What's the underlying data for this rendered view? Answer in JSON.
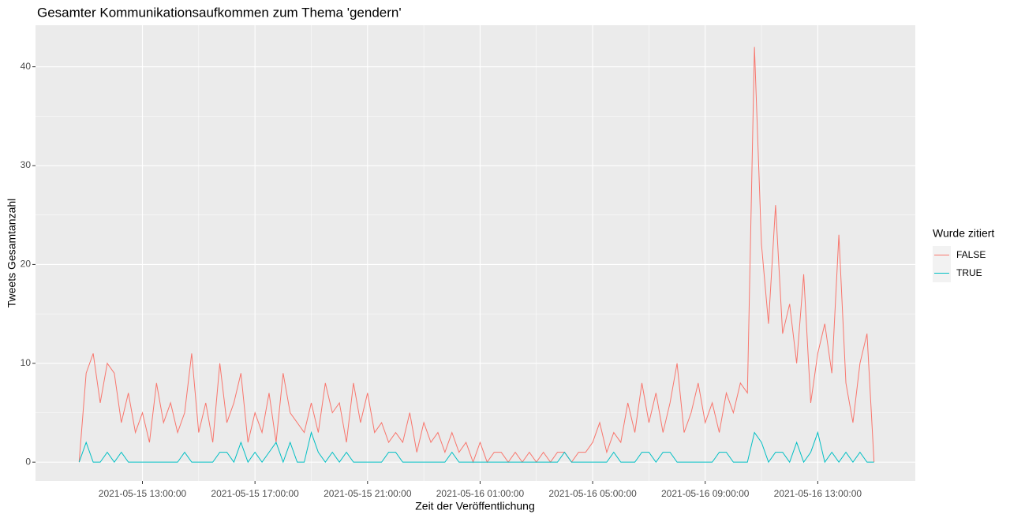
{
  "chart_data": {
    "type": "line",
    "title": "Gesamter Kommunikationsaufkommen zum Thema 'gendern'",
    "x_label": "Zeit der Veröffentlichung",
    "y_label": "Tweets Gesamtanzahl",
    "legend_title": "Wurde zitiert",
    "legend_position": "right",
    "grid": true,
    "x": [
      "2021-05-15 10:45:00",
      "2021-05-15 11:00:00",
      "2021-05-15 11:15:00",
      "2021-05-15 11:30:00",
      "2021-05-15 11:45:00",
      "2021-05-15 12:00:00",
      "2021-05-15 12:15:00",
      "2021-05-15 12:30:00",
      "2021-05-15 12:45:00",
      "2021-05-15 13:00:00",
      "2021-05-15 13:15:00",
      "2021-05-15 13:30:00",
      "2021-05-15 13:45:00",
      "2021-05-15 14:00:00",
      "2021-05-15 14:15:00",
      "2021-05-15 14:30:00",
      "2021-05-15 14:45:00",
      "2021-05-15 15:00:00",
      "2021-05-15 15:15:00",
      "2021-05-15 15:30:00",
      "2021-05-15 15:45:00",
      "2021-05-15 16:00:00",
      "2021-05-15 16:15:00",
      "2021-05-15 16:30:00",
      "2021-05-15 16:45:00",
      "2021-05-15 17:00:00",
      "2021-05-15 17:15:00",
      "2021-05-15 17:30:00",
      "2021-05-15 17:45:00",
      "2021-05-15 18:00:00",
      "2021-05-15 18:15:00",
      "2021-05-15 18:30:00",
      "2021-05-15 18:45:00",
      "2021-05-15 19:00:00",
      "2021-05-15 19:15:00",
      "2021-05-15 19:30:00",
      "2021-05-15 19:45:00",
      "2021-05-15 20:00:00",
      "2021-05-15 20:15:00",
      "2021-05-15 20:30:00",
      "2021-05-15 20:45:00",
      "2021-05-15 21:00:00",
      "2021-05-15 21:15:00",
      "2021-05-15 21:30:00",
      "2021-05-15 21:45:00",
      "2021-05-15 22:00:00",
      "2021-05-15 22:15:00",
      "2021-05-15 22:30:00",
      "2021-05-15 22:45:00",
      "2021-05-15 23:00:00",
      "2021-05-15 23:15:00",
      "2021-05-15 23:30:00",
      "2021-05-15 23:45:00",
      "2021-05-16 00:00:00",
      "2021-05-16 00:15:00",
      "2021-05-16 00:30:00",
      "2021-05-16 00:45:00",
      "2021-05-16 01:00:00",
      "2021-05-16 01:15:00",
      "2021-05-16 01:30:00",
      "2021-05-16 01:45:00",
      "2021-05-16 02:00:00",
      "2021-05-16 02:15:00",
      "2021-05-16 02:30:00",
      "2021-05-16 02:45:00",
      "2021-05-16 03:00:00",
      "2021-05-16 03:15:00",
      "2021-05-16 03:30:00",
      "2021-05-16 03:45:00",
      "2021-05-16 04:00:00",
      "2021-05-16 04:15:00",
      "2021-05-16 04:30:00",
      "2021-05-16 04:45:00",
      "2021-05-16 05:00:00",
      "2021-05-16 05:15:00",
      "2021-05-16 05:30:00",
      "2021-05-16 05:45:00",
      "2021-05-16 06:00:00",
      "2021-05-16 06:15:00",
      "2021-05-16 06:30:00",
      "2021-05-16 06:45:00",
      "2021-05-16 07:00:00",
      "2021-05-16 07:15:00",
      "2021-05-16 07:30:00",
      "2021-05-16 07:45:00",
      "2021-05-16 08:00:00",
      "2021-05-16 08:15:00",
      "2021-05-16 08:30:00",
      "2021-05-16 08:45:00",
      "2021-05-16 09:00:00",
      "2021-05-16 09:15:00",
      "2021-05-16 09:30:00",
      "2021-05-16 09:45:00",
      "2021-05-16 10:00:00",
      "2021-05-16 10:15:00",
      "2021-05-16 10:30:00",
      "2021-05-16 10:45:00",
      "2021-05-16 11:00:00",
      "2021-05-16 11:15:00",
      "2021-05-16 11:30:00",
      "2021-05-16 11:45:00",
      "2021-05-16 12:00:00",
      "2021-05-16 12:15:00",
      "2021-05-16 12:30:00",
      "2021-05-16 12:45:00",
      "2021-05-16 13:00:00",
      "2021-05-16 13:15:00",
      "2021-05-16 13:30:00",
      "2021-05-16 13:45:00",
      "2021-05-16 14:00:00",
      "2021-05-16 14:15:00",
      "2021-05-16 14:30:00",
      "2021-05-16 14:45:00",
      "2021-05-16 15:00:00"
    ],
    "series": [
      {
        "name": "FALSE",
        "color": "#F8766D",
        "values": [
          0,
          9,
          11,
          6,
          10,
          9,
          4,
          7,
          3,
          5,
          2,
          8,
          4,
          6,
          3,
          5,
          11,
          3,
          6,
          2,
          10,
          4,
          6,
          9,
          2,
          5,
          3,
          7,
          2,
          9,
          5,
          4,
          3,
          6,
          3,
          8,
          5,
          6,
          2,
          8,
          4,
          7,
          3,
          4,
          2,
          3,
          2,
          5,
          1,
          4,
          2,
          3,
          1,
          3,
          1,
          2,
          0,
          2,
          0,
          1,
          1,
          0,
          1,
          0,
          1,
          0,
          1,
          0,
          1,
          1,
          0,
          1,
          1,
          2,
          4,
          1,
          3,
          2,
          6,
          3,
          8,
          4,
          7,
          3,
          6,
          10,
          3,
          5,
          8,
          4,
          6,
          3,
          7,
          5,
          8,
          7,
          42,
          22,
          14,
          26,
          13,
          16,
          10,
          19,
          6,
          11,
          14,
          9,
          23,
          8,
          4,
          10,
          13,
          0
        ]
      },
      {
        "name": "TRUE",
        "color": "#00BFC4",
        "values": [
          0,
          2,
          0,
          0,
          1,
          0,
          1,
          0,
          0,
          0,
          0,
          0,
          0,
          0,
          0,
          1,
          0,
          0,
          0,
          0,
          1,
          1,
          0,
          2,
          0,
          1,
          0,
          1,
          2,
          0,
          2,
          0,
          0,
          3,
          1,
          0,
          1,
          0,
          1,
          0,
          0,
          0,
          0,
          0,
          1,
          1,
          0,
          0,
          0,
          0,
          0,
          0,
          0,
          1,
          0,
          0,
          0,
          0,
          0,
          0,
          0,
          0,
          0,
          0,
          0,
          0,
          0,
          0,
          0,
          1,
          0,
          0,
          0,
          0,
          0,
          0,
          1,
          0,
          0,
          0,
          1,
          1,
          0,
          1,
          1,
          0,
          0,
          0,
          0,
          0,
          0,
          1,
          1,
          0,
          0,
          0,
          3,
          2,
          0,
          1,
          1,
          0,
          2,
          0,
          1,
          3,
          0,
          1,
          0,
          1,
          0,
          1,
          0,
          0
        ]
      }
    ],
    "xlim": [
      "2021-05-15 09:12:00",
      "2021-05-16 16:28:00"
    ],
    "xticks": [
      "2021-05-15 13:00:00",
      "2021-05-15 17:00:00",
      "2021-05-15 21:00:00",
      "2021-05-16 01:00:00",
      "2021-05-16 05:00:00",
      "2021-05-16 09:00:00",
      "2021-05-16 13:00:00"
    ],
    "ylim": [
      -1.9,
      44.2
    ],
    "yticks": [
      0,
      10,
      20,
      30,
      40
    ]
  }
}
